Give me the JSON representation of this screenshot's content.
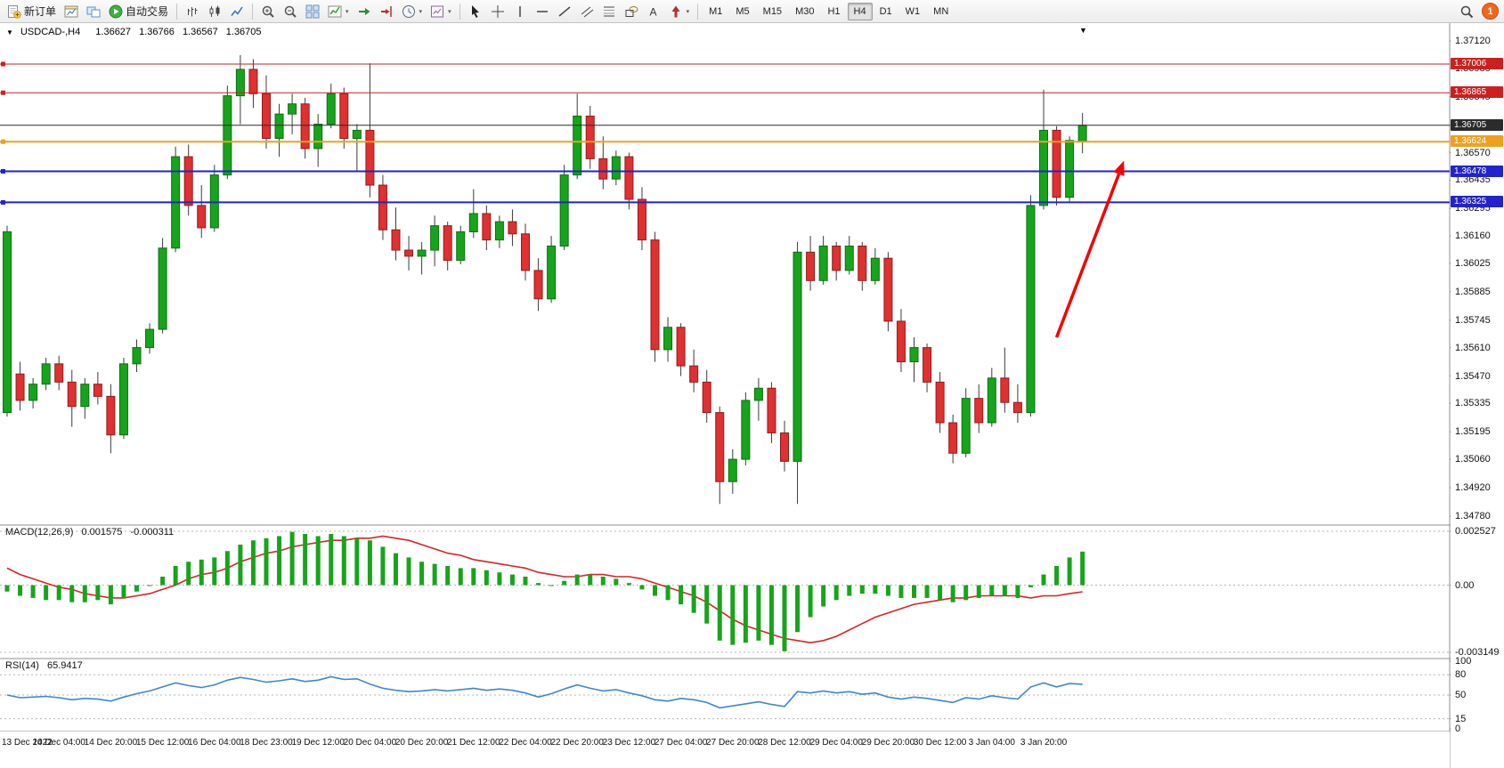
{
  "toolbar": {
    "buttons": [
      {
        "name": "new-order-button",
        "icon": "doc-plus",
        "label": "新订单"
      },
      {
        "name": "charts-button",
        "icon": "chart-frame"
      },
      {
        "name": "profiles-button",
        "icon": "layout"
      },
      {
        "name": "autotrading-button",
        "icon": "play",
        "label": "自动交易"
      },
      {
        "name": "divider-1",
        "divider": true
      },
      {
        "name": "bar-chart-button",
        "icon": "bars"
      },
      {
        "name": "candlestick-chart-button",
        "icon": "candles"
      },
      {
        "name": "line-chart-button",
        "icon": "linechart"
      },
      {
        "name": "divider-2",
        "divider": true
      },
      {
        "name": "zoom-in-button",
        "icon": "zoom-in"
      },
      {
        "name": "zoom-out-button",
        "icon": "zoom-out"
      },
      {
        "name": "tile-windows-button",
        "icon": "tile"
      },
      {
        "name": "indicators-button",
        "icon": "indicators",
        "caret": true
      },
      {
        "name": "auto-scroll-button",
        "icon": "autoscroll"
      },
      {
        "name": "chart-shift-button",
        "icon": "shift"
      },
      {
        "name": "periods-button",
        "icon": "periods",
        "caret": true
      },
      {
        "name": "templates-button",
        "icon": "template",
        "caret": true
      },
      {
        "name": "divider-3",
        "divider": true
      },
      {
        "name": "cursor-button",
        "icon": "cursor"
      },
      {
        "name": "crosshair-button",
        "icon": "crosshair"
      },
      {
        "name": "vertical-line-button",
        "icon": "vline"
      },
      {
        "name": "horizontal-line-button",
        "icon": "hline"
      },
      {
        "name": "trendline-button",
        "icon": "tline"
      },
      {
        "name": "channel-button",
        "icon": "channel"
      },
      {
        "name": "fibonacci-button",
        "icon": "fibo"
      },
      {
        "name": "shapes-button",
        "icon": "shapes"
      },
      {
        "name": "text-button",
        "icon": "text"
      },
      {
        "name": "arrows-button",
        "icon": "arrows",
        "caret": true
      },
      {
        "name": "divider-4",
        "divider": true
      }
    ],
    "timeframes": [
      "M1",
      "M5",
      "M15",
      "M30",
      "H1",
      "H4",
      "D1",
      "W1",
      "MN"
    ],
    "active_timeframe": "H4",
    "notification_count": "1"
  },
  "chart_title": {
    "collapse_icon": "▼",
    "menu_icon": "▼",
    "symbol": "USDCAD-,H4",
    "open": "1.36627",
    "high": "1.36766",
    "low": "1.36567",
    "close": "1.36705"
  },
  "price_axis_labels": [
    "1.37120",
    "1.36985",
    "1.36845",
    "1.36705",
    "1.36570",
    "1.36435",
    "1.36295",
    "1.36160",
    "1.36025",
    "1.35885",
    "1.35745",
    "1.35610",
    "1.35470",
    "1.35335",
    "1.35195",
    "1.35060",
    "1.34920",
    "1.34780"
  ],
  "hlines": [
    {
      "price": 1.37006,
      "label": "1.37006",
      "color": "#cc2020",
      "width": 1,
      "handle": true
    },
    {
      "price": 1.36865,
      "label": "1.36865",
      "color": "#cc2020",
      "width": 1,
      "handle": true
    },
    {
      "price": 1.36705,
      "label": "1.36705",
      "color": "#2b2b2b",
      "width": 1,
      "handle": false
    },
    {
      "price": 1.36624,
      "label": "1.36624",
      "color": "#efa01e",
      "width": 2,
      "handle": true
    },
    {
      "price": 1.36478,
      "label": "1.36478",
      "color": "#2323cc",
      "width": 2,
      "handle": true
    },
    {
      "price": 1.36325,
      "label": "1.36325",
      "color": "#2323cc",
      "width": 2,
      "handle": true
    }
  ],
  "arrow_annotation": {
    "from_bar": 81,
    "from_price": 1.3566,
    "to_bar": 86.2,
    "to_price": 1.3653,
    "color": "#f40000"
  },
  "colors": {
    "bull": "#16a51a",
    "bull_border": "#0b6e14",
    "bear": "#e03030",
    "bear_border": "#8f1d1d",
    "wick": "#3c3c3c",
    "macd_histogram": "#16a51a",
    "macd_signal": "#dd2222",
    "rsi_line": "#3e87d0",
    "grid": "#b5b5b5",
    "separator": "#8f8f8f",
    "background": "#ffffff",
    "axis_text": "#111111"
  },
  "chart_data": {
    "type": "candlestick",
    "symbol": "USDCAD",
    "period": "H4",
    "price_range": [
      1.3478,
      1.3712
    ],
    "bars_per_label": 4,
    "time_labels": [
      "13 Dec 2022",
      "14 Dec 04:00",
      "14 Dec 20:00",
      "15 Dec 12:00",
      "16 Dec 04:00",
      "18 Dec 23:00",
      "19 Dec 12:00",
      "20 Dec 04:00",
      "20 Dec 20:00",
      "21 Dec 12:00",
      "22 Dec 04:00",
      "22 Dec 20:00",
      "23 Dec 12:00",
      "27 Dec 04:00",
      "27 Dec 20:00",
      "28 Dec 12:00",
      "29 Dec 04:00",
      "29 Dec 20:00",
      "30 Dec 12:00",
      "3 Jan 04:00",
      "3 Jan 20:00"
    ],
    "ohlc": [
      [
        1.3529,
        1.3621,
        1.3527,
        1.3618
      ],
      [
        1.3548,
        1.3554,
        1.353,
        1.3535
      ],
      [
        1.3535,
        1.3546,
        1.3531,
        1.3543
      ],
      [
        1.3543,
        1.3556,
        1.354,
        1.3553
      ],
      [
        1.3553,
        1.3557,
        1.354,
        1.3544
      ],
      [
        1.3544,
        1.355,
        1.3522,
        1.3532
      ],
      [
        1.3532,
        1.3546,
        1.3526,
        1.3543
      ],
      [
        1.3543,
        1.3549,
        1.3533,
        1.3537
      ],
      [
        1.3537,
        1.3543,
        1.3509,
        1.3518
      ],
      [
        1.3518,
        1.3556,
        1.3516,
        1.3553
      ],
      [
        1.3553,
        1.3565,
        1.3549,
        1.3561
      ],
      [
        1.3561,
        1.3573,
        1.3558,
        1.357
      ],
      [
        1.357,
        1.3615,
        1.3568,
        1.361
      ],
      [
        1.361,
        1.366,
        1.3608,
        1.3655
      ],
      [
        1.3655,
        1.3661,
        1.3626,
        1.3631
      ],
      [
        1.3631,
        1.3641,
        1.3615,
        1.362
      ],
      [
        1.362,
        1.3651,
        1.3618,
        1.3646
      ],
      [
        1.3646,
        1.369,
        1.3644,
        1.3685
      ],
      [
        1.3685,
        1.3705,
        1.3671,
        1.3698
      ],
      [
        1.3698,
        1.3703,
        1.3679,
        1.3686
      ],
      [
        1.3686,
        1.3695,
        1.3659,
        1.3664
      ],
      [
        1.3664,
        1.3681,
        1.3655,
        1.3676
      ],
      [
        1.3676,
        1.3686,
        1.3666,
        1.3681
      ],
      [
        1.3681,
        1.3684,
        1.3654,
        1.3659
      ],
      [
        1.3659,
        1.3676,
        1.365,
        1.3671
      ],
      [
        1.3671,
        1.3691,
        1.3669,
        1.3686
      ],
      [
        1.3686,
        1.3689,
        1.3659,
        1.3664
      ],
      [
        1.3664,
        1.3671,
        1.3648,
        1.3668
      ],
      [
        1.3668,
        1.3701,
        1.3635,
        1.3641
      ],
      [
        1.3641,
        1.3646,
        1.3614,
        1.3619
      ],
      [
        1.3619,
        1.363,
        1.3604,
        1.3609
      ],
      [
        1.3609,
        1.3616,
        1.3599,
        1.3606
      ],
      [
        1.3606,
        1.3613,
        1.3597,
        1.3609
      ],
      [
        1.3609,
        1.3626,
        1.3601,
        1.3621
      ],
      [
        1.3621,
        1.3623,
        1.3599,
        1.3604
      ],
      [
        1.3604,
        1.3621,
        1.3602,
        1.3618
      ],
      [
        1.3618,
        1.3639,
        1.3615,
        1.3627
      ],
      [
        1.3627,
        1.3631,
        1.3609,
        1.3614
      ],
      [
        1.3614,
        1.3626,
        1.361,
        1.3623
      ],
      [
        1.3623,
        1.3629,
        1.3611,
        1.3617
      ],
      [
        1.3617,
        1.3622,
        1.3594,
        1.3599
      ],
      [
        1.3599,
        1.3605,
        1.3579,
        1.3585
      ],
      [
        1.3585,
        1.3616,
        1.3583,
        1.3611
      ],
      [
        1.3611,
        1.3651,
        1.3609,
        1.3646
      ],
      [
        1.3646,
        1.3686,
        1.3644,
        1.3675
      ],
      [
        1.3675,
        1.368,
        1.3649,
        1.3654
      ],
      [
        1.3654,
        1.3665,
        1.3639,
        1.3644
      ],
      [
        1.3644,
        1.3658,
        1.3641,
        1.3655
      ],
      [
        1.3655,
        1.3657,
        1.3629,
        1.3634
      ],
      [
        1.3634,
        1.364,
        1.3609,
        1.3614
      ],
      [
        1.3614,
        1.3618,
        1.3554,
        1.356
      ],
      [
        1.356,
        1.3576,
        1.3554,
        1.3571
      ],
      [
        1.3571,
        1.3573,
        1.3547,
        1.3552
      ],
      [
        1.3552,
        1.356,
        1.3539,
        1.3544
      ],
      [
        1.3544,
        1.355,
        1.3524,
        1.3529
      ],
      [
        1.3529,
        1.3532,
        1.3484,
        1.3495
      ],
      [
        1.3495,
        1.3511,
        1.3489,
        1.3506
      ],
      [
        1.3506,
        1.3539,
        1.3503,
        1.3535
      ],
      [
        1.3535,
        1.3546,
        1.3525,
        1.3541
      ],
      [
        1.3541,
        1.3544,
        1.3514,
        1.3519
      ],
      [
        1.3519,
        1.3525,
        1.35,
        1.3505
      ],
      [
        1.3505,
        1.3613,
        1.3484,
        1.3608
      ],
      [
        1.3608,
        1.3616,
        1.3589,
        1.3594
      ],
      [
        1.3594,
        1.3616,
        1.3592,
        1.3611
      ],
      [
        1.3611,
        1.3613,
        1.3594,
        1.3599
      ],
      [
        1.3599,
        1.3616,
        1.3597,
        1.3611
      ],
      [
        1.3611,
        1.3613,
        1.3589,
        1.3594
      ],
      [
        1.3594,
        1.361,
        1.3592,
        1.3605
      ],
      [
        1.3605,
        1.3608,
        1.3569,
        1.3574
      ],
      [
        1.3574,
        1.358,
        1.3549,
        1.3554
      ],
      [
        1.3554,
        1.3566,
        1.3544,
        1.3561
      ],
      [
        1.3561,
        1.3563,
        1.3539,
        1.3544
      ],
      [
        1.3544,
        1.3549,
        1.3519,
        1.3524
      ],
      [
        1.3524,
        1.3528,
        1.3504,
        1.3509
      ],
      [
        1.3509,
        1.3541,
        1.3507,
        1.3536
      ],
      [
        1.3536,
        1.3543,
        1.3519,
        1.3524
      ],
      [
        1.3524,
        1.3551,
        1.3522,
        1.3546
      ],
      [
        1.3546,
        1.3561,
        1.3529,
        1.3534
      ],
      [
        1.3534,
        1.3543,
        1.3524,
        1.3529
      ],
      [
        1.3529,
        1.3636,
        1.3527,
        1.3631
      ],
      [
        1.3631,
        1.3688,
        1.3629,
        1.3668
      ],
      [
        1.3668,
        1.367,
        1.3631,
        1.3635
      ],
      [
        1.3635,
        1.3665,
        1.3633,
        1.3663
      ],
      [
        1.36627,
        1.36766,
        1.36567,
        1.36705
      ]
    ],
    "indicators": [
      {
        "name": "MACD",
        "label": "MACD(12,26,9)",
        "main_value": "0.001575",
        "signal_value": "-0.000311",
        "axis_labels": [
          "0.002527",
          "0.00",
          "-0.003149"
        ],
        "range": [
          -0.003149,
          0.002527
        ],
        "histogram": [
          -0.0003,
          -0.0005,
          -0.0006,
          -0.0007,
          -0.0007,
          -0.0008,
          -0.0008,
          -0.0007,
          -0.0009,
          -0.0006,
          -0.0003,
          0.0,
          0.0004,
          0.0009,
          0.0011,
          0.0012,
          0.0013,
          0.0016,
          0.0019,
          0.0021,
          0.0022,
          0.0023,
          0.0025,
          0.0024,
          0.0023,
          0.0024,
          0.0023,
          0.0022,
          0.0021,
          0.0018,
          0.0015,
          0.0013,
          0.0011,
          0.001,
          0.0009,
          0.0008,
          0.0008,
          0.0007,
          0.0006,
          0.0005,
          0.0004,
          0.0001,
          0.0,
          0.0002,
          0.0005,
          0.0005,
          0.0004,
          0.0003,
          0.0001,
          -0.0002,
          -0.0005,
          -0.0007,
          -0.0009,
          -0.0013,
          -0.0018,
          -0.0026,
          -0.0028,
          -0.0027,
          -0.0026,
          -0.0028,
          -0.0031,
          -0.0022,
          -0.0015,
          -0.001,
          -0.0007,
          -0.0005,
          -0.0004,
          -0.0004,
          -0.0005,
          -0.0006,
          -0.0006,
          -0.0006,
          -0.0007,
          -0.0008,
          -0.0007,
          -0.0006,
          -0.0005,
          -0.0005,
          -0.0006,
          -0.0001,
          0.0005,
          0.0009,
          0.0013,
          0.001575
        ],
        "signal": [
          0.0008,
          0.0005,
          0.0003,
          0.0001,
          -0.0001,
          -0.0002,
          -0.0004,
          -0.0005,
          -0.0006,
          -0.0006,
          -0.0005,
          -0.0004,
          -0.0002,
          0.0,
          0.0003,
          0.0005,
          0.0006,
          0.0008,
          0.0011,
          0.0013,
          0.0015,
          0.0016,
          0.0018,
          0.0019,
          0.002,
          0.0021,
          0.0021,
          0.0022,
          0.0022,
          0.0023,
          0.0022,
          0.0021,
          0.0019,
          0.0017,
          0.0015,
          0.0014,
          0.0012,
          0.0011,
          0.001,
          0.0009,
          0.0008,
          0.0006,
          0.0005,
          0.0004,
          0.0004,
          0.0005,
          0.0005,
          0.0004,
          0.0004,
          0.0003,
          0.0001,
          -0.0001,
          -0.0003,
          -0.0005,
          -0.0008,
          -0.0012,
          -0.0016,
          -0.0019,
          -0.0021,
          -0.0023,
          -0.0025,
          -0.0026,
          -0.0027,
          -0.0026,
          -0.0024,
          -0.0021,
          -0.0018,
          -0.0015,
          -0.0013,
          -0.0011,
          -0.0009,
          -0.0008,
          -0.0007,
          -0.0006,
          -0.0006,
          -0.0005,
          -0.0005,
          -0.0005,
          -0.0005,
          -0.0006,
          -0.0005,
          -0.0005,
          -0.0004,
          -0.000311
        ]
      },
      {
        "name": "RSI",
        "label": "RSI(14)",
        "value": "65.9417",
        "axis_labels": [
          "100",
          "80",
          "50",
          "15",
          "0"
        ],
        "levels": [
          80,
          50,
          15
        ],
        "values": [
          50,
          46,
          47,
          48,
          46,
          43,
          45,
          44,
          41,
          47,
          52,
          56,
          62,
          68,
          64,
          61,
          65,
          72,
          76,
          73,
          69,
          71,
          74,
          70,
          72,
          77,
          73,
          74,
          66,
          60,
          57,
          55,
          56,
          58,
          56,
          58,
          60,
          57,
          59,
          57,
          53,
          47,
          52,
          59,
          65,
          60,
          56,
          58,
          53,
          49,
          43,
          41,
          45,
          43,
          39,
          31,
          34,
          37,
          40,
          36,
          33,
          55,
          53,
          56,
          53,
          55,
          51,
          53,
          47,
          44,
          47,
          45,
          42,
          39,
          46,
          44,
          49,
          46,
          44,
          62,
          68,
          62,
          67,
          65.9417
        ]
      }
    ]
  }
}
